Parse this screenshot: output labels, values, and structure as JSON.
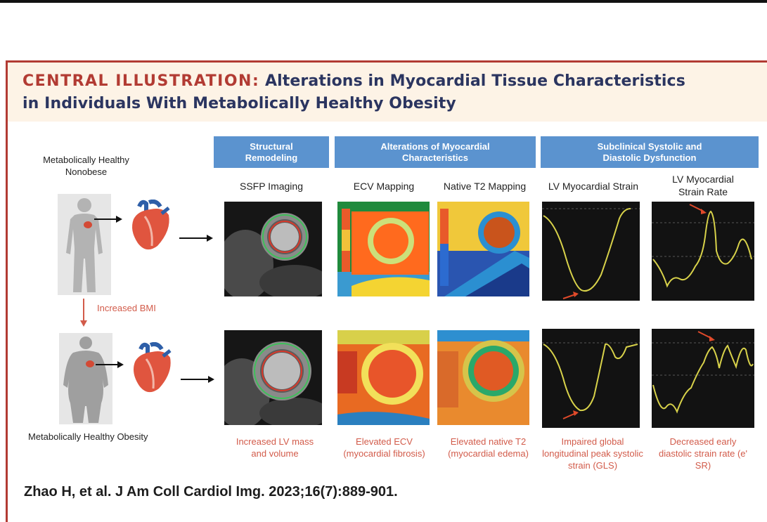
{
  "title": {
    "lead": "CENTRAL ILLUSTRATION:",
    "line1_rest": "Alterations in Myocardial Tissue Characteristics",
    "line2": "in Individuals With Metabolically Healthy Obesity"
  },
  "banners": {
    "structural": "Structural Remodeling",
    "myocardial": "Alterations of Myocardial Characteristics",
    "dysfunction": "Subclinical Systolic and Diastolic Dysfunction"
  },
  "columns": {
    "ssfp": "SSFP Imaging",
    "ecv": "ECV Mapping",
    "t2": "Native T2 Mapping",
    "strain": "LV Myocardial Strain",
    "strain_rate": "LV Myocardial Strain Rate"
  },
  "groups": {
    "nonobese": "Metabolically Healthy Nonobese",
    "obese": "Metabolically Healthy Obesity",
    "transition": "Increased BMI"
  },
  "captions": {
    "ssfp": "Increased LV mass and volume",
    "ecv": "Elevated ECV (myocardial fibrosis)",
    "t2": "Elevated native T2 (myocardial edema)",
    "strain": "Impaired global longitudinal peak systolic strain (GLS)",
    "strain_rate": "Decreased early diastolic strain rate (e' SR)"
  },
  "citation": "Zhao H, et al. J Am Coll Cardiol Img. 2023;16(7):889-901.",
  "colors": {
    "accent_red": "#b23b33",
    "navy": "#2b3560",
    "banner_blue": "#5b93cf",
    "caption_red": "#d25b4a",
    "header_cream": "#fdf3e6"
  },
  "icons": [
    "person-silhouette-icon",
    "obese-person-silhouette-icon",
    "heart-icon",
    "arrow-right-icon",
    "arrow-down-icon"
  ]
}
